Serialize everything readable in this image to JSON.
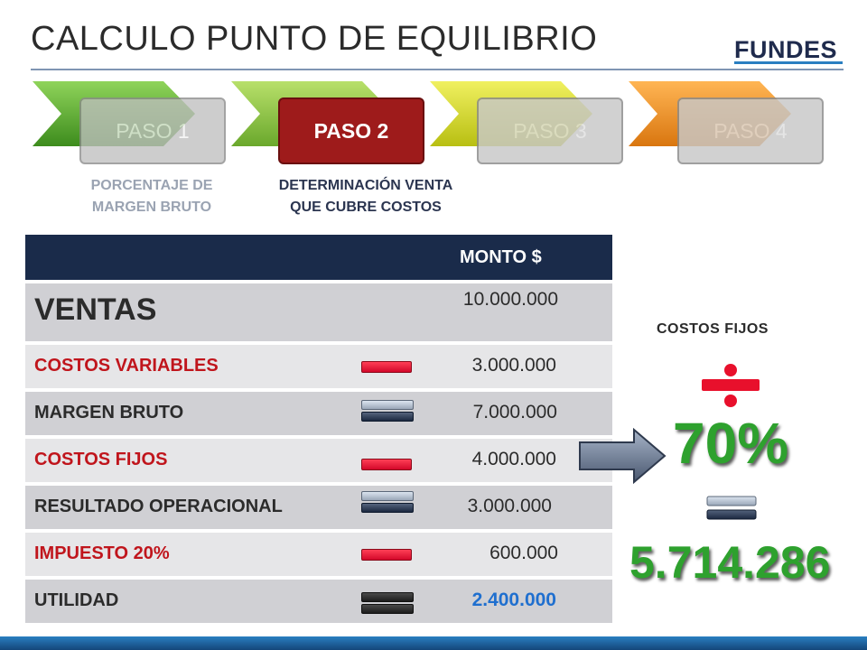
{
  "title": "CALCULO PUNTO DE EQUILIBRIO",
  "logo": "FUNDES",
  "steps": [
    {
      "label": "PASO 1",
      "desc_line1": "PORCENTAJE DE",
      "desc_line2": "MARGEN BRUTO",
      "color": "#5fb82f"
    },
    {
      "label": "PASO 2",
      "desc_line1": "DETERMINACIÓN VENTA",
      "desc_line2": "QUE CUBRE COSTOS",
      "color": "#8cc63f"
    },
    {
      "label": "PASO 3",
      "color": "#d9e021"
    },
    {
      "label": "PASO 4",
      "color": "#f7941d"
    }
  ],
  "table": {
    "header": "MONTO $",
    "rows": [
      {
        "label": "VENTAS",
        "value": "10.000.000",
        "operator": "none"
      },
      {
        "label": "COSTOS VARIABLES",
        "value": "3.000.000",
        "operator": "minus"
      },
      {
        "label": "MARGEN BRUTO",
        "value": "7.000.000",
        "operator": "equals"
      },
      {
        "label": "COSTOS FIJOS",
        "value": "4.000.000",
        "operator": "minus"
      },
      {
        "label": "RESULTADO OPERACIONAL",
        "value": "3.000.000",
        "operator": "equals"
      },
      {
        "label": "IMPUESTO 20%",
        "value": "600.000",
        "operator": "minus"
      },
      {
        "label": "UTILIDAD",
        "value": "2.400.000",
        "operator": "equals"
      }
    ]
  },
  "calc": {
    "label": "COSTOS FIJOS",
    "percent": "70%",
    "result": "5.714.286"
  },
  "colors": {
    "header_bg": "#1a2b4a",
    "red": "#c0151c",
    "green": "#2ea12e",
    "active_step": "#9e1b1b"
  }
}
